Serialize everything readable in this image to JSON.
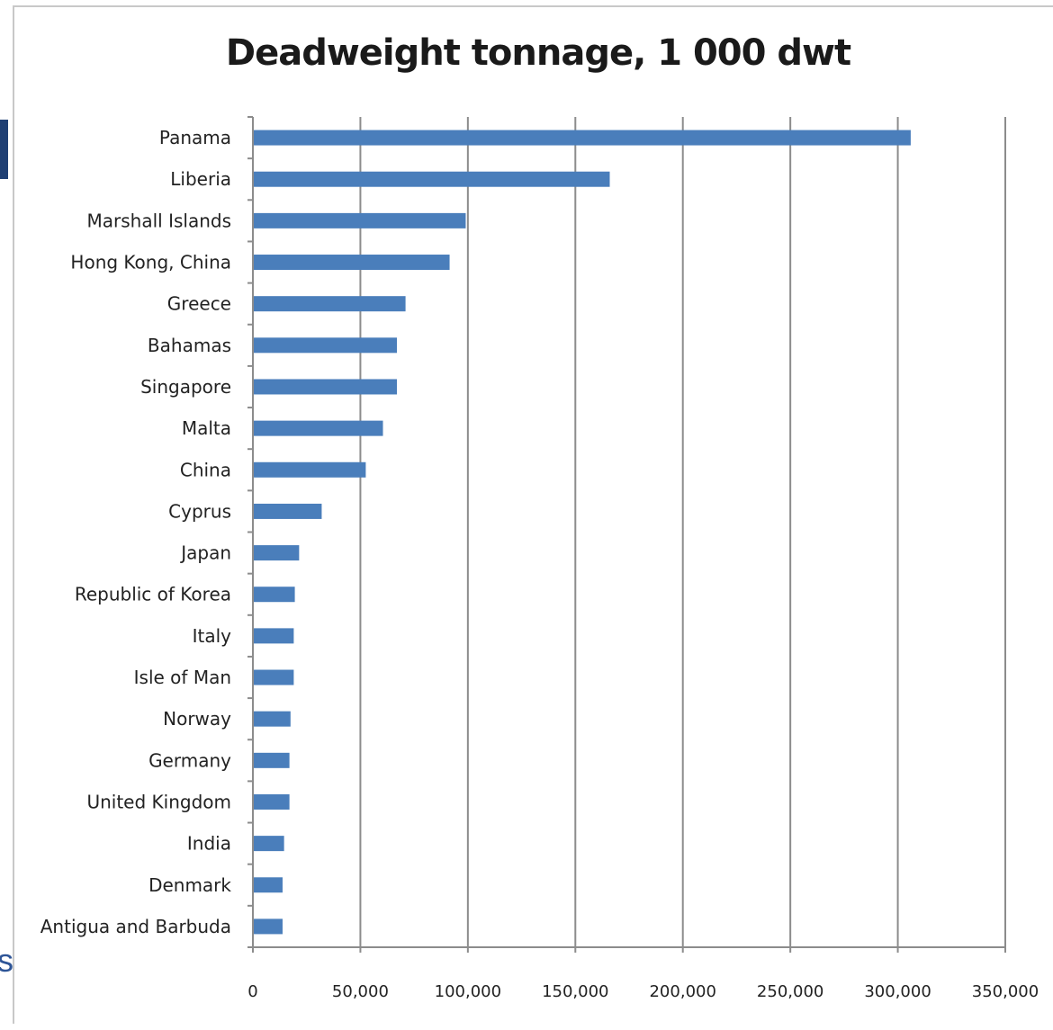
{
  "chart_data": {
    "type": "bar",
    "orientation": "horizontal",
    "title": "Deadweight tonnage, 1 000 dwt",
    "xlabel": "",
    "ylabel": "",
    "categories": [
      "Panama",
      "Liberia",
      "Marshall Islands",
      "Hong Kong, China",
      "Greece",
      "Bahamas",
      "Singapore",
      "Malta",
      "China",
      "Cyprus",
      "Japan",
      "Republic of Korea",
      "Italy",
      "Isle of Man",
      "Norway",
      "Germany",
      "United Kingdom",
      "India",
      "Denmark",
      "Antigua and Barbuda"
    ],
    "values": [
      306000,
      166000,
      99000,
      91500,
      71000,
      67000,
      67000,
      60500,
      52500,
      32000,
      21500,
      19500,
      19000,
      19000,
      17500,
      17000,
      17000,
      14500,
      13800,
      13800
    ],
    "xlim": [
      0,
      350000
    ],
    "ticks": [
      "0",
      "50,000",
      "100,000",
      "150,000",
      "200,000",
      "250,000",
      "300,000",
      "350,000"
    ],
    "tick_values": [
      0,
      50000,
      100000,
      150000,
      200000,
      250000,
      300000,
      350000
    ],
    "grid": true,
    "bar_color": "#4a7ebb",
    "legend": "none"
  },
  "edge_text": "s"
}
